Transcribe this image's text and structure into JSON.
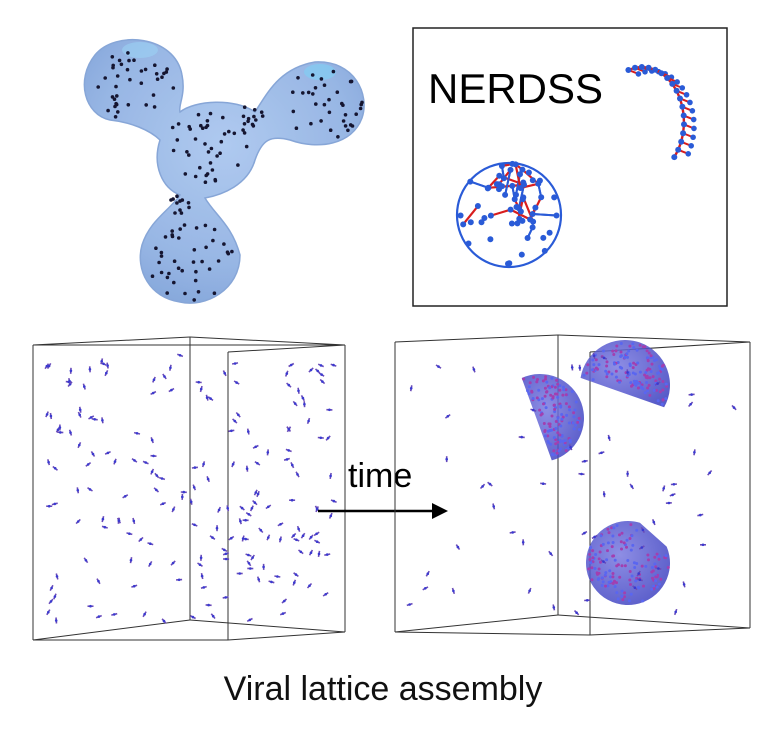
{
  "panels": {
    "rigid_body_model": {},
    "nerdss_box": {
      "label": "NERDSS"
    },
    "simulation_initial": {},
    "simulation_final": {},
    "transition": {
      "label": "time"
    }
  },
  "caption": "Viral lattice assembly",
  "colors": {
    "blob_fill": "#8fb4e6",
    "blob_edge": "#6f97d0",
    "node_blue": "#2a5bd7",
    "bond_red": "#d81e1e",
    "particle_purple": "#6a4bb8",
    "frame": "#222222"
  }
}
